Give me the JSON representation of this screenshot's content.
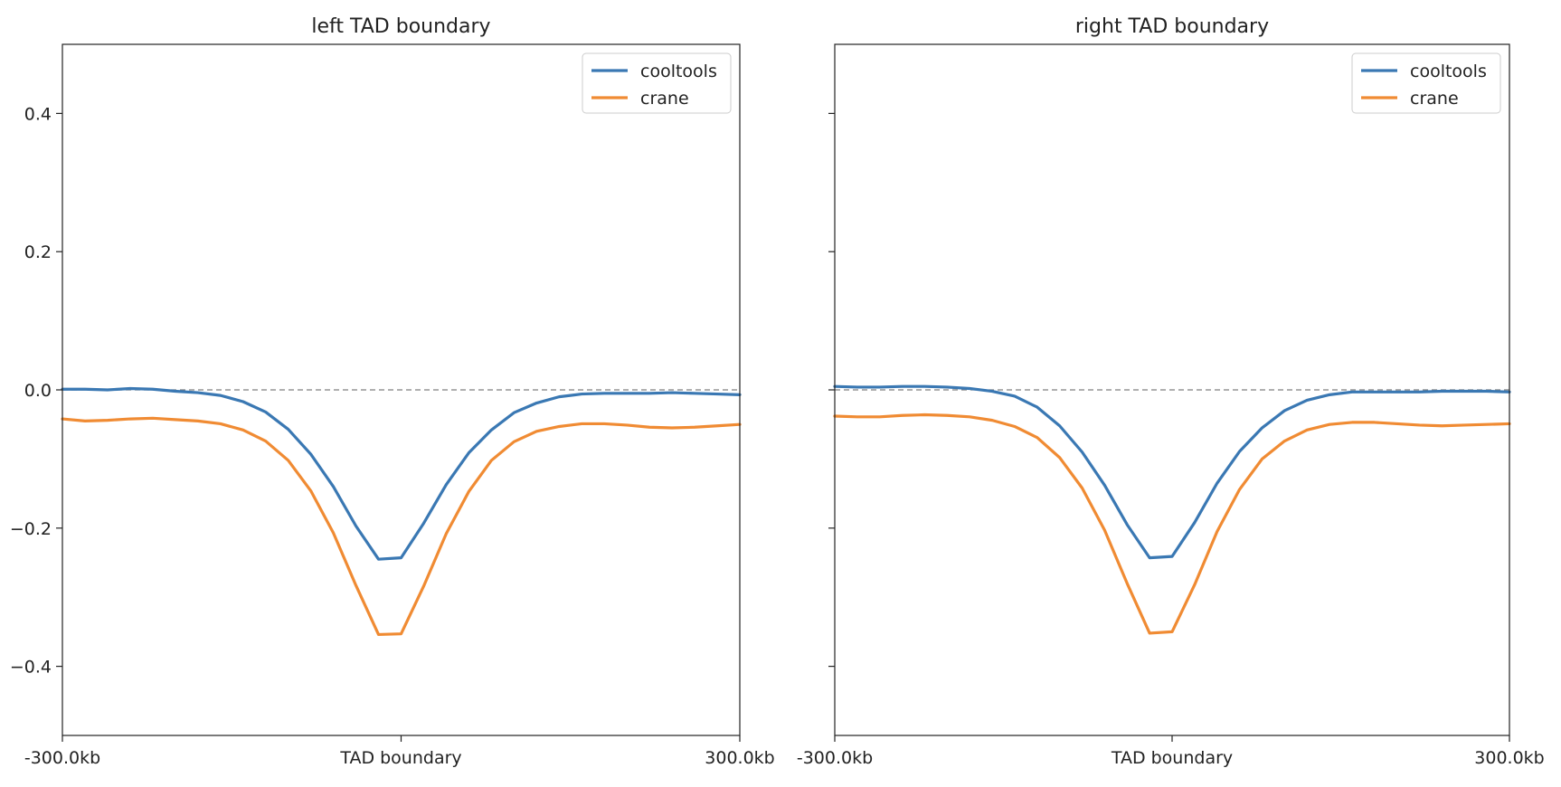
{
  "chart_data": [
    {
      "type": "line",
      "title": "left TAD boundary",
      "xlabel": "",
      "ylabel": "",
      "x_ticks": [
        {
          "value": 0,
          "label": "-300.0kb"
        },
        {
          "value": 15,
          "label": "TAD boundary"
        },
        {
          "value": 30,
          "label": "300.0kb"
        }
      ],
      "y_ticks": [
        {
          "value": -0.4,
          "label": "−0.4"
        },
        {
          "value": -0.2,
          "label": "−0.2"
        },
        {
          "value": 0.0,
          "label": "0.0"
        },
        {
          "value": 0.2,
          "label": "0.2"
        },
        {
          "value": 0.4,
          "label": "0.4"
        }
      ],
      "xlim": [
        0,
        30
      ],
      "ylim": [
        -0.5,
        0.5
      ],
      "reference_line": 0.0,
      "legend_position": "top-right",
      "series": [
        {
          "name": "cooltools",
          "color": "#3a78b3",
          "x": [
            0,
            1,
            2,
            3,
            4,
            5,
            6,
            7,
            8,
            9,
            10,
            11,
            12,
            13,
            14,
            15,
            16,
            17,
            18,
            19,
            20,
            21,
            22,
            23,
            24,
            25,
            26,
            27,
            28,
            29,
            30
          ],
          "y": [
            0.001,
            0.001,
            0.0,
            0.002,
            0.001,
            -0.002,
            -0.004,
            -0.008,
            -0.017,
            -0.032,
            -0.057,
            -0.093,
            -0.14,
            -0.197,
            -0.245,
            -0.243,
            -0.193,
            -0.137,
            -0.091,
            -0.058,
            -0.033,
            -0.019,
            -0.01,
            -0.006,
            -0.005,
            -0.005,
            -0.005,
            -0.004,
            -0.005,
            -0.006,
            -0.007
          ]
        },
        {
          "name": "crane",
          "color": "#f08b33",
          "x": [
            0,
            1,
            2,
            3,
            4,
            5,
            6,
            7,
            8,
            9,
            10,
            11,
            12,
            13,
            14,
            15,
            16,
            17,
            18,
            19,
            20,
            21,
            22,
            23,
            24,
            25,
            26,
            27,
            28,
            29,
            30
          ],
          "y": [
            -0.042,
            -0.045,
            -0.044,
            -0.042,
            -0.041,
            -0.043,
            -0.045,
            -0.049,
            -0.058,
            -0.074,
            -0.102,
            -0.146,
            -0.207,
            -0.283,
            -0.354,
            -0.353,
            -0.284,
            -0.208,
            -0.147,
            -0.102,
            -0.075,
            -0.06,
            -0.053,
            -0.049,
            -0.049,
            -0.051,
            -0.054,
            -0.055,
            -0.054,
            -0.052,
            -0.05
          ]
        }
      ]
    },
    {
      "type": "line",
      "title": "right TAD boundary",
      "xlabel": "",
      "ylabel": "",
      "x_ticks": [
        {
          "value": 0,
          "label": "-300.0kb"
        },
        {
          "value": 15,
          "label": "TAD boundary"
        },
        {
          "value": 30,
          "label": "300.0kb"
        }
      ],
      "y_ticks": [
        {
          "value": -0.4,
          "label": ""
        },
        {
          "value": -0.2,
          "label": ""
        },
        {
          "value": 0.0,
          "label": ""
        },
        {
          "value": 0.2,
          "label": ""
        },
        {
          "value": 0.4,
          "label": ""
        }
      ],
      "xlim": [
        0,
        30
      ],
      "ylim": [
        -0.5,
        0.5
      ],
      "reference_line": 0.0,
      "legend_position": "top-right",
      "series": [
        {
          "name": "cooltools",
          "color": "#3a78b3",
          "x": [
            0,
            1,
            2,
            3,
            4,
            5,
            6,
            7,
            8,
            9,
            10,
            11,
            12,
            13,
            14,
            15,
            16,
            17,
            18,
            19,
            20,
            21,
            22,
            23,
            24,
            25,
            26,
            27,
            28,
            29,
            30
          ],
          "y": [
            0.005,
            0.004,
            0.004,
            0.005,
            0.005,
            0.004,
            0.002,
            -0.002,
            -0.009,
            -0.025,
            -0.052,
            -0.09,
            -0.138,
            -0.195,
            -0.243,
            -0.241,
            -0.192,
            -0.135,
            -0.089,
            -0.055,
            -0.03,
            -0.015,
            -0.007,
            -0.003,
            -0.003,
            -0.003,
            -0.003,
            -0.002,
            -0.002,
            -0.002,
            -0.003
          ]
        },
        {
          "name": "crane",
          "color": "#f08b33",
          "x": [
            0,
            1,
            2,
            3,
            4,
            5,
            6,
            7,
            8,
            9,
            10,
            11,
            12,
            13,
            14,
            15,
            16,
            17,
            18,
            19,
            20,
            21,
            22,
            23,
            24,
            25,
            26,
            27,
            28,
            29,
            30
          ],
          "y": [
            -0.038,
            -0.039,
            -0.039,
            -0.037,
            -0.036,
            -0.037,
            -0.039,
            -0.044,
            -0.053,
            -0.069,
            -0.098,
            -0.142,
            -0.203,
            -0.28,
            -0.352,
            -0.35,
            -0.282,
            -0.205,
            -0.144,
            -0.1,
            -0.074,
            -0.058,
            -0.05,
            -0.047,
            -0.047,
            -0.049,
            -0.051,
            -0.052,
            -0.051,
            -0.05,
            -0.049
          ]
        }
      ]
    }
  ]
}
